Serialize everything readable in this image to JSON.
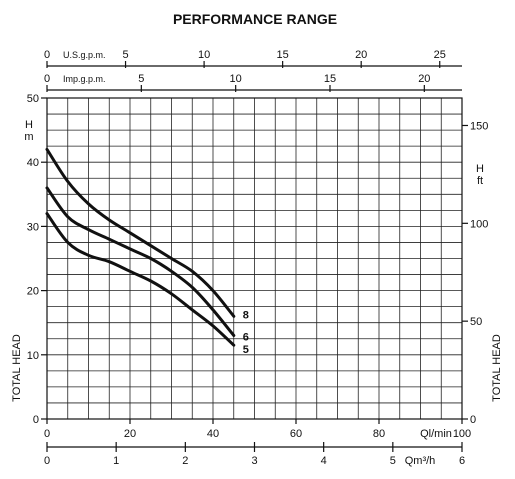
{
  "chart_data": {
    "type": "line",
    "title": "PERFORMANCE RANGE",
    "x": {
      "label": "Ql/min",
      "min": 0,
      "max": 100,
      "ticks": [
        0,
        20,
        40,
        60,
        80,
        100
      ]
    },
    "y_left": {
      "label": "TOTAL HEAD",
      "unit": "m",
      "unit_prefix": "H",
      "min": 0,
      "max": 50,
      "ticks": [
        0,
        10,
        20,
        30,
        40,
        50
      ]
    },
    "y_right": {
      "label": "TOTAL HEAD",
      "unit": "ft",
      "unit_prefix": "H",
      "ticks": [
        0,
        50,
        100,
        150
      ]
    },
    "top_axes": [
      {
        "label": "U.S.g.p.m.",
        "ticks": [
          0,
          5,
          10,
          15,
          20,
          25
        ]
      },
      {
        "label": "Imp.g.p.m.",
        "ticks": [
          0,
          5,
          10,
          15,
          20
        ]
      }
    ],
    "bottom_axis": {
      "label": "Qm³/h",
      "ticks": [
        0,
        1,
        2,
        3,
        4,
        5,
        6
      ]
    },
    "grid": true,
    "series": [
      {
        "name": "8",
        "x": [
          0,
          5,
          10,
          15,
          20,
          25,
          30,
          35,
          40,
          45
        ],
        "y": [
          42,
          37,
          33.5,
          31,
          29,
          27,
          25,
          23,
          20,
          16
        ]
      },
      {
        "name": "6",
        "x": [
          0,
          5,
          10,
          15,
          20,
          25,
          30,
          35,
          40,
          45
        ],
        "y": [
          36,
          31.5,
          29.5,
          28,
          26.5,
          25,
          23,
          20.5,
          17,
          13
        ]
      },
      {
        "name": "5",
        "x": [
          0,
          5,
          10,
          15,
          20,
          25,
          30,
          35,
          40,
          45
        ],
        "y": [
          32,
          27.5,
          25.5,
          24.5,
          23,
          21.5,
          19.5,
          17,
          14.5,
          11.5
        ]
      }
    ]
  }
}
